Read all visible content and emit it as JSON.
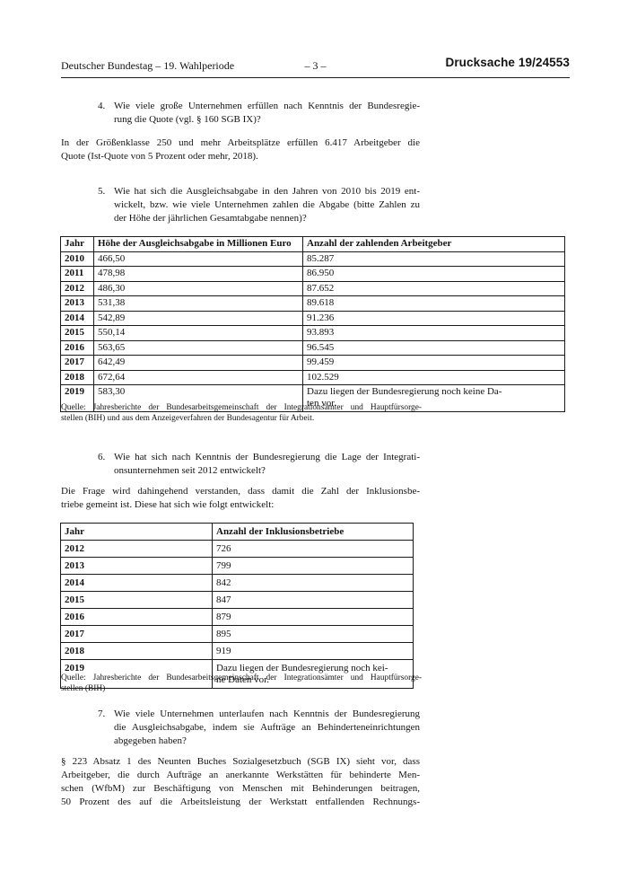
{
  "header": {
    "left": "Deutscher Bundestag – 19. Wahlperiode",
    "page": "– 3 –",
    "doc_label": "Drucksache",
    "doc_number": "19/24553"
  },
  "q4": {
    "number": "4.",
    "lines": [
      "Wie viele große Unternehmen erfüllen nach Kenntnis der Bundesregie-",
      "rung die Quote (vgl. § 160 SGB IX)?"
    ]
  },
  "a4": {
    "lines": [
      "In der Größenklasse 250 und mehr Arbeitsplätze erfüllen 6.417 Arbeitgeber die",
      "Quote (Ist-Quote von 5 Prozent oder mehr, 2018)."
    ]
  },
  "q5": {
    "number": "5.",
    "lines": [
      "Wie hat sich die Ausgleichsabgabe in den Jahren von 2010 bis 2019 ent-",
      "wickelt, bzw. wie viele Unternehmen zahlen die Abgabe (bitte Zahlen zu",
      "der Höhe der jährlichen Gesamtabgabe nennen)?"
    ]
  },
  "table1": {
    "headers": [
      "Jahr",
      "Höhe der Ausgleichsabgabe in Millionen Euro",
      "Anzahl der zahlenden Arbeitgeber"
    ],
    "rows": [
      [
        "2010",
        "466,50",
        "85.287"
      ],
      [
        "2011",
        "478,98",
        "86.950"
      ],
      [
        "2012",
        "486,30",
        "87.652"
      ],
      [
        "2013",
        "531,38",
        "89.618"
      ],
      [
        "2014",
        "542,89",
        "91.236"
      ],
      [
        "2015",
        "550,14",
        "93.893"
      ],
      [
        "2016",
        "563,65",
        "96.545"
      ],
      [
        "2017",
        "642,49",
        "99.459"
      ],
      [
        "2018",
        "672,64",
        "102.529"
      ],
      [
        "2019",
        "583,30",
        [
          "Dazu liegen der Bundesregierung noch keine Da-",
          "ten vor."
        ]
      ]
    ]
  },
  "source1": {
    "lines": [
      "Quelle: Jahresberichte der Bundesarbeitsgemeinschaft der Integrationsämter und Hauptfürsorge-",
      "stellen (BIH) und aus dem Anzeigeverfahren der Bundesagentur für Arbeit."
    ]
  },
  "q6": {
    "number": "6.",
    "lines": [
      "Wie hat sich nach Kenntnis der Bundesregierung die Lage der Integrati-",
      "onsunternehmen seit 2012 entwickelt?"
    ]
  },
  "a6": {
    "lines": [
      "Die Frage wird dahingehend verstanden, dass damit die Zahl der Inklusionsbe-",
      "triebe gemeint ist. Diese hat sich wie folgt entwickelt:"
    ]
  },
  "table2": {
    "headers": [
      "Jahr",
      "Anzahl der Inklusionsbetriebe"
    ],
    "rows": [
      [
        "2012",
        "726"
      ],
      [
        "2013",
        "799"
      ],
      [
        "2014",
        "842"
      ],
      [
        "2015",
        "847"
      ],
      [
        "2016",
        "879"
      ],
      [
        "2017",
        "895"
      ],
      [
        "2018",
        "919"
      ],
      [
        "2019",
        [
          "Dazu liegen der Bundesregierung noch kei-",
          "ne Daten vor."
        ]
      ]
    ]
  },
  "source2": {
    "lines": [
      "Quelle: Jahresberichte der Bundesarbeitsgemeinschaft der Integrationsämter und Hauptfürsorge-",
      "stellen (BIH)"
    ]
  },
  "q7": {
    "number": "7.",
    "lines": [
      "Wie viele Unternehmen unterlaufen nach Kenntnis der Bundesregierung",
      "die Ausgleichsabgabe, indem sie Aufträge an Behinderteneinrichtungen",
      "abgegeben haben?"
    ]
  },
  "a7": {
    "lines": [
      "§ 223 Absatz 1 des Neunten Buches Sozialgesetzbuch (SGB IX) sieht vor, dass",
      "Arbeitgeber, die durch Aufträge an anerkannte Werkstätten für behinderte Men-",
      "schen (WfbM) zur Beschäftigung von Menschen mit Behinderungen beitragen,",
      "50 Prozent des auf die Arbeitsleistung der Werkstatt entfallenden Rechnungs-"
    ]
  }
}
